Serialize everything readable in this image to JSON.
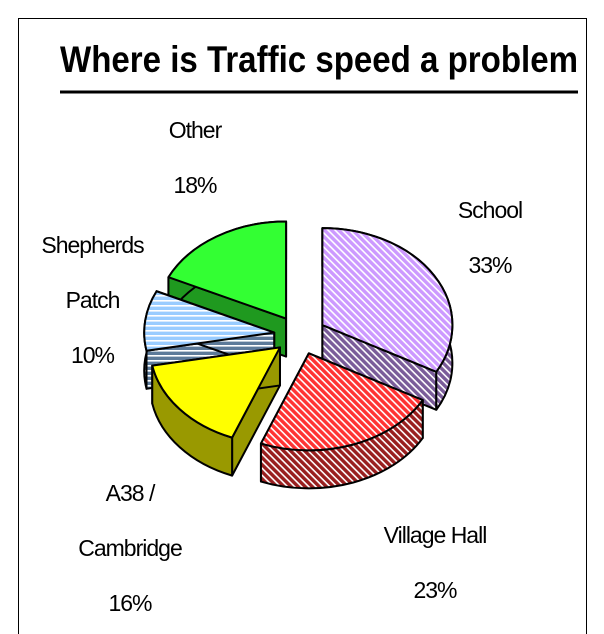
{
  "chart_data": {
    "type": "pie",
    "title": "Where is Traffic speed a problem",
    "categories": [
      "School",
      "Village Hall",
      "A38 / Cambridge",
      "Shepherds Patch",
      "Other"
    ],
    "values": [
      33,
      23,
      16,
      10,
      18
    ],
    "value_labels": [
      "33%",
      "23%",
      "16%",
      "10%",
      "18%"
    ],
    "colors": [
      "#cc99ff",
      "#ff3333",
      "#ffff00",
      "#99ccff",
      "#33ff33"
    ],
    "hatch": [
      "diagonal",
      "diagonal",
      "none",
      "horizontal",
      "none"
    ]
  }
}
